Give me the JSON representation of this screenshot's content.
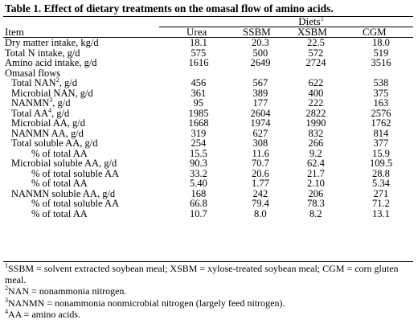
{
  "table": {
    "title": "Table 1.  Effect of dietary treatments on the omasal flow of amino acids.",
    "diets_header": "Diets",
    "diets_header_sup": "1",
    "item_header": "Item",
    "columns": [
      "Urea",
      "SSBM",
      "XSBM",
      "CGM"
    ],
    "rows": [
      {
        "label": "Dry matter intake, kg/d",
        "sup": "",
        "indent": 0,
        "values": [
          "18.1",
          "20.3",
          "22.5",
          "18.0"
        ]
      },
      {
        "label": "Total N intake, g/d",
        "sup": "",
        "indent": 0,
        "values": [
          "575",
          "500",
          "572",
          "519"
        ]
      },
      {
        "label": "Amino acid intake, g/d",
        "sup": "",
        "indent": 0,
        "values": [
          "1616",
          "2649",
          "2724",
          "3516"
        ]
      },
      {
        "label": "Omasal flows",
        "sup": "",
        "indent": 0,
        "values": [
          "",
          "",
          "",
          ""
        ]
      },
      {
        "label": "Total NAN",
        "sup": "2",
        "suffix": ", g/d",
        "indent": 1,
        "values": [
          "456",
          "567",
          "622",
          "538"
        ]
      },
      {
        "label": "Microbial NAN, g/d",
        "sup": "",
        "indent": 1,
        "values": [
          "361",
          "389",
          "400",
          "375"
        ]
      },
      {
        "label": "NANMN",
        "sup": "3",
        "suffix": ", g/d",
        "indent": 1,
        "values": [
          "95",
          "177",
          "222",
          "163"
        ]
      },
      {
        "label": "Total AA",
        "sup": "4",
        "suffix": ", g/d",
        "indent": 1,
        "values": [
          "1985",
          "2604",
          "2822",
          "2576"
        ]
      },
      {
        "label": "Microbial AA, g/d",
        "sup": "",
        "indent": 1,
        "values": [
          "1668",
          "1974",
          "1990",
          "1762"
        ]
      },
      {
        "label": "NANMN AA, g/d",
        "sup": "",
        "indent": 1,
        "values": [
          "319",
          "627",
          "832",
          "814"
        ]
      },
      {
        "label": "Total soluble AA, g/d",
        "sup": "",
        "indent": 1,
        "values": [
          "254",
          "308",
          "266",
          "377"
        ]
      },
      {
        "label": "% of total AA",
        "sup": "",
        "indent": 2,
        "values": [
          "15.5",
          "11.6",
          "9.2",
          "15.9"
        ]
      },
      {
        "label": "Microbial soluble AA, g/d",
        "sup": "",
        "indent": 1,
        "values": [
          "90.3",
          "70.7",
          "62.4",
          "109.5"
        ]
      },
      {
        "label": "% of total soluble AA",
        "sup": "",
        "indent": 2,
        "values": [
          "33.2",
          "20.6",
          "21.7",
          "28.8"
        ]
      },
      {
        "label": "% of total AA",
        "sup": "",
        "indent": 2,
        "values": [
          "5.40",
          "1.77",
          "2.10",
          "5.34"
        ]
      },
      {
        "label": "NANMN soluble AA, g/d",
        "sup": "",
        "indent": 1,
        "values": [
          "168",
          "242",
          "206",
          "271"
        ]
      },
      {
        "label": "% of total soluble AA",
        "sup": "",
        "indent": 2,
        "values": [
          "66.8",
          "79.4",
          "78.3",
          "71.2"
        ]
      },
      {
        "label": "% of total AA",
        "sup": "",
        "indent": 2,
        "values": [
          "10.7",
          "8.0",
          "8.2",
          "13.1"
        ]
      }
    ],
    "footnotes": [
      {
        "sup": "1",
        "text": "SSBM = solvent extracted soybean meal; XSBM = xylose-treated soybean meal; CGM = corn gluten meal."
      },
      {
        "sup": "2",
        "text": "NAN = nonammonia nitrogen."
      },
      {
        "sup": "3",
        "text": "NANMN = nonammonia nonmicrobial nitrogen (largely feed nitrogen)."
      },
      {
        "sup": "4",
        "text": "AA = amino acids."
      }
    ]
  }
}
